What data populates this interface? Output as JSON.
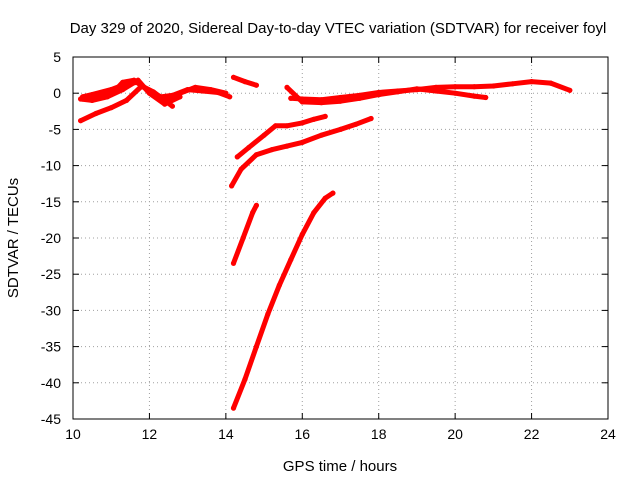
{
  "chart_data": {
    "type": "scatter",
    "title": "Day 329 of 2020, Sidereal Day-to-day VTEC variation (SDTVAR) for receiver foyl",
    "xlabel": "GPS time / hours",
    "ylabel": "SDTVAR / TECUs",
    "xlim": [
      10,
      24
    ],
    "ylim": [
      -45,
      5
    ],
    "xticks": [
      10,
      12,
      14,
      16,
      18,
      20,
      22,
      24
    ],
    "yticks": [
      5,
      0,
      -5,
      -10,
      -15,
      -20,
      -25,
      -30,
      -35,
      -40,
      -45
    ],
    "grid": true,
    "marker_color": "#ff0000",
    "series": [
      {
        "name": "s1",
        "x": [
          10.25,
          10.6,
          11.0,
          11.3,
          11.6,
          11.8,
          12.0,
          12.3,
          12.6,
          13.0,
          13.4,
          13.8,
          14.1
        ],
        "y": [
          -0.8,
          -0.6,
          -0.2,
          1.5,
          1.8,
          1.0,
          0.3,
          -0.5,
          -0.3,
          0.5,
          0.3,
          0.1,
          -0.5
        ]
      },
      {
        "name": "s2",
        "x": [
          10.25,
          10.5,
          11.0,
          11.4,
          11.7,
          12.0,
          12.3,
          12.5,
          12.8,
          13.2,
          13.6,
          14.0
        ],
        "y": [
          -0.5,
          -0.2,
          0.5,
          1.3,
          1.5,
          0.2,
          -1.0,
          -1.0,
          0.0,
          0.8,
          0.5,
          0.0
        ]
      },
      {
        "name": "s3",
        "x": [
          10.2,
          10.6,
          11.0,
          11.4,
          11.8,
          12.1,
          12.4,
          12.6
        ],
        "y": [
          -3.8,
          -2.8,
          -2.0,
          -1.0,
          1.0,
          0.2,
          -1.0,
          -1.8
        ]
      },
      {
        "name": "s4",
        "x": [
          10.2,
          10.5,
          10.9,
          11.3,
          11.7,
          12.0,
          12.4,
          12.8
        ],
        "y": [
          -0.8,
          -1.0,
          -0.5,
          0.5,
          1.8,
          0.0,
          -1.5,
          -0.5
        ]
      },
      {
        "name": "s5",
        "x": [
          14.2,
          14.5,
          14.8
        ],
        "y": [
          2.2,
          1.6,
          1.1
        ]
      },
      {
        "name": "s6",
        "x": [
          15.7,
          16.0,
          16.5,
          17.0,
          17.5,
          18.0,
          18.5,
          19.0,
          19.5,
          20.0,
          20.5,
          21.0,
          21.5,
          22.0,
          22.5,
          23.0
        ],
        "y": [
          -0.7,
          -0.8,
          -0.9,
          -0.6,
          -0.3,
          0.1,
          0.3,
          0.5,
          0.8,
          0.9,
          0.9,
          1.0,
          1.3,
          1.6,
          1.4,
          0.4
        ]
      },
      {
        "name": "s7",
        "x": [
          15.6,
          16.0,
          16.5,
          17.0,
          17.5,
          18.0,
          18.5,
          19.0,
          19.5,
          20.0,
          20.5,
          20.8
        ],
        "y": [
          0.8,
          -1.2,
          -1.3,
          -1.1,
          -0.7,
          -0.2,
          0.2,
          0.6,
          0.3,
          0.0,
          -0.4,
          -0.6
        ]
      },
      {
        "name": "s8",
        "x": [
          14.3,
          14.6,
          15.0,
          15.3,
          15.6,
          16.0,
          16.3,
          16.6
        ],
        "y": [
          -8.8,
          -7.5,
          -5.8,
          -4.5,
          -4.5,
          -4.1,
          -3.6,
          -3.2
        ]
      },
      {
        "name": "s9",
        "x": [
          14.15,
          14.4,
          14.8,
          15.2,
          15.6,
          16.0,
          16.5,
          17.0,
          17.4,
          17.8
        ],
        "y": [
          -12.8,
          -10.5,
          -8.5,
          -7.8,
          -7.3,
          -6.8,
          -5.8,
          -5.0,
          -4.3,
          -3.5
        ]
      },
      {
        "name": "s10",
        "x": [
          14.2,
          14.45,
          14.7,
          14.8
        ],
        "y": [
          -23.5,
          -20.0,
          -16.5,
          -15.5
        ]
      },
      {
        "name": "s11",
        "x": [
          14.2,
          14.5,
          14.8,
          15.1,
          15.4,
          15.7,
          16.0,
          16.3,
          16.6,
          16.8
        ],
        "y": [
          -43.5,
          -39.5,
          -35.0,
          -30.5,
          -26.5,
          -23.0,
          -19.5,
          -16.5,
          -14.5,
          -13.8
        ]
      }
    ]
  }
}
